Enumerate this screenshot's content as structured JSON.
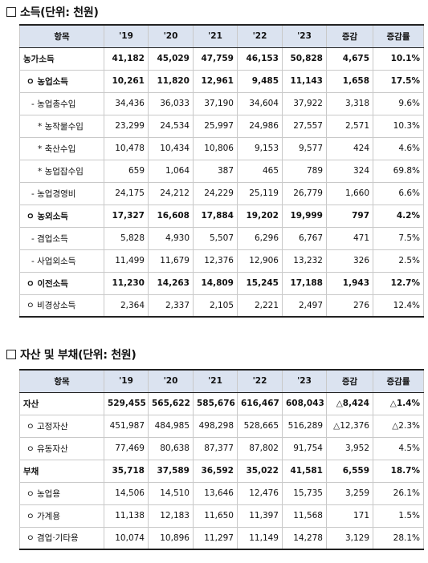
{
  "income": {
    "title": "소득",
    "unit": "(단위: 천원)",
    "headers": [
      "항목",
      "'19",
      "'20",
      "'21",
      "'22",
      "'23",
      "증감",
      "증감률"
    ],
    "rows": [
      [
        "농가소득",
        "41,182",
        "45,029",
        "47,759",
        "46,153",
        "50,828",
        "4,675",
        "10.1%"
      ],
      [
        "ㅇ 농업소득",
        "10,261",
        "11,820",
        "12,961",
        "9,485",
        "11,143",
        "1,658",
        "17.5%"
      ],
      [
        "- 농업총수입",
        "34,436",
        "36,033",
        "37,190",
        "34,604",
        "37,922",
        "3,318",
        "9.6%"
      ],
      [
        "* 농작물수입",
        "23,299",
        "24,534",
        "25,997",
        "24,986",
        "27,557",
        "2,571",
        "10.3%"
      ],
      [
        "* 축산수입",
        "10,478",
        "10,434",
        "10,806",
        "9,153",
        "9,577",
        "424",
        "4.6%"
      ],
      [
        "* 농업잡수입",
        "659",
        "1,064",
        "387",
        "465",
        "789",
        "324",
        "69.8%"
      ],
      [
        "- 농업경영비",
        "24,175",
        "24,212",
        "24,229",
        "25,119",
        "26,779",
        "1,660",
        "6.6%"
      ],
      [
        "ㅇ 농외소득",
        "17,327",
        "16,608",
        "17,884",
        "19,202",
        "19,999",
        "797",
        "4.2%"
      ],
      [
        "- 겸업소득",
        "5,828",
        "4,930",
        "5,507",
        "6,296",
        "6,767",
        "471",
        "7.5%"
      ],
      [
        "- 사업외소득",
        "11,499",
        "11,679",
        "12,376",
        "12,906",
        "13,232",
        "326",
        "2.5%"
      ],
      [
        "ㅇ 이전소득",
        "11,230",
        "14,263",
        "14,809",
        "15,245",
        "17,188",
        "1,943",
        "12.7%"
      ],
      [
        "ㅇ 비경상소득",
        "2,364",
        "2,337",
        "2,105",
        "2,221",
        "2,497",
        "276",
        "12.4%"
      ]
    ]
  },
  "assets": {
    "title": "자산 및 부채",
    "unit": "(단위: 천원)",
    "headers": [
      "항목",
      "'19",
      "'20",
      "'21",
      "'22",
      "'23",
      "증감",
      "증감률"
    ],
    "rows": [
      [
        "자산",
        "529,455",
        "565,622",
        "585,676",
        "616,467",
        "608,043",
        "△8,424",
        "△1.4%"
      ],
      [
        "ㅇ 고정자산",
        "451,987",
        "484,985",
        "498,298",
        "528,665",
        "516,289",
        "△12,376",
        "△2.3%"
      ],
      [
        "ㅇ 유동자산",
        "77,469",
        "80,638",
        "87,377",
        "87,802",
        "91,754",
        "3,952",
        "4.5%"
      ],
      [
        "부채",
        "35,718",
        "37,589",
        "36,592",
        "35,022",
        "41,581",
        "6,559",
        "18.7%"
      ],
      [
        "ㅇ 농업용",
        "14,506",
        "14,510",
        "13,646",
        "12,476",
        "15,735",
        "3,259",
        "26.1%"
      ],
      [
        "ㅇ 가계용",
        "11,138",
        "12,183",
        "11,650",
        "11,397",
        "11,568",
        "171",
        "1.5%"
      ],
      [
        "ㅇ 겸업·기타용",
        "10,074",
        "10,896",
        "11,297",
        "11,149",
        "14,278",
        "3,129",
        "28.1%"
      ]
    ]
  }
}
